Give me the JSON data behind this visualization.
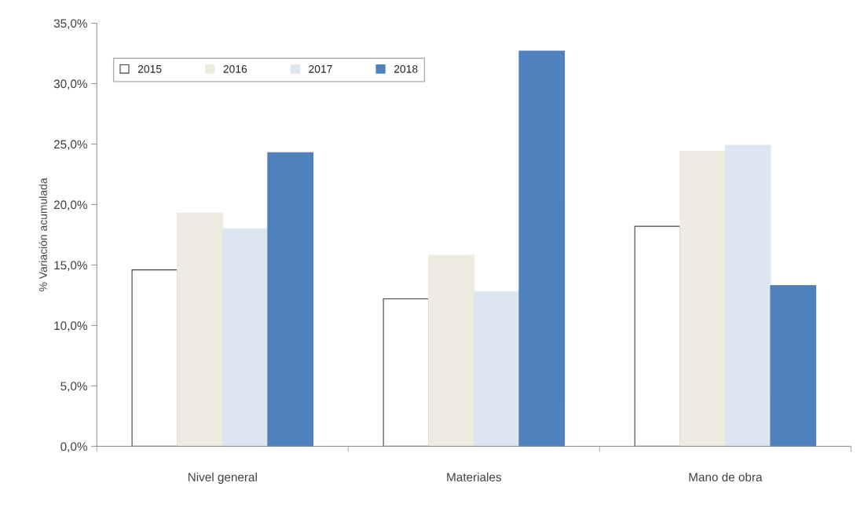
{
  "chart_data": {
    "type": "bar",
    "ylabel": "% Variación acumulada",
    "categories": [
      "Nivel general",
      "Materiales",
      "Mano de obra"
    ],
    "series": [
      {
        "name": "2015",
        "color": "#ffffff",
        "values": [
          14.6,
          12.2,
          18.2
        ]
      },
      {
        "name": "2016",
        "color": "#eeebe0",
        "values": [
          19.3,
          15.8,
          24.4
        ]
      },
      {
        "name": "2017",
        "color": "#dce6f1",
        "values": [
          18.0,
          12.8,
          24.9
        ]
      },
      {
        "name": "2018",
        "color": "#4f81bd",
        "values": [
          24.3,
          32.7,
          13.3
        ]
      }
    ],
    "ylim": [
      0,
      35
    ],
    "yticks": [
      {
        "value": 0,
        "label": "0,0%"
      },
      {
        "value": 5,
        "label": "5,0%"
      },
      {
        "value": 10,
        "label": "10,0%"
      },
      {
        "value": 15,
        "label": "15,0%"
      },
      {
        "value": 20,
        "label": "20,0%"
      },
      {
        "value": 25,
        "label": "25,0%"
      },
      {
        "value": 30,
        "label": "30,0%"
      },
      {
        "value": 35,
        "label": "35,0%"
      }
    ],
    "grid": false,
    "legend": "top left"
  }
}
